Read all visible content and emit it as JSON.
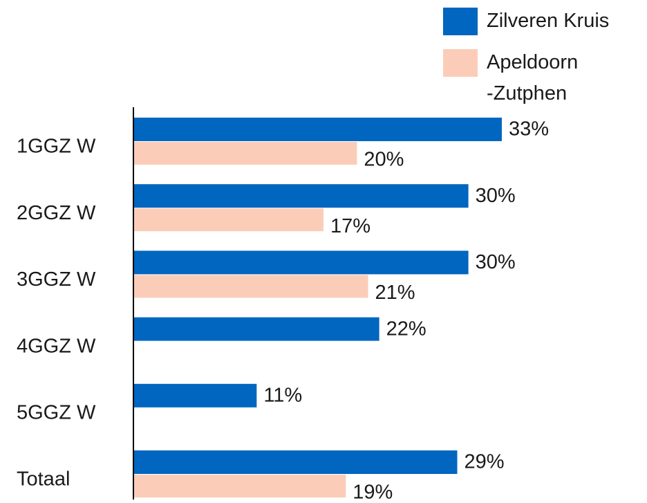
{
  "chart_data": {
    "type": "bar",
    "orientation": "horizontal",
    "categories": [
      "1GGZ W",
      "2GGZ W",
      "3GGZ W",
      "4GGZ W",
      "5GGZ W",
      "Totaal"
    ],
    "series": [
      {
        "name": "Zilveren Kruis",
        "color": "#0066c0",
        "values": [
          33,
          30,
          30,
          22,
          11,
          29
        ],
        "value_labels": [
          "33%",
          "30%",
          "30%",
          "22%",
          "11%",
          "29%"
        ]
      },
      {
        "name": "Apeldoorn\n-Zutphen",
        "color": "#fbcdb8",
        "values": [
          20,
          17,
          21,
          null,
          null,
          19
        ],
        "value_labels": [
          "20%",
          "17%",
          "21%",
          null,
          null,
          "19%"
        ]
      }
    ]
  }
}
